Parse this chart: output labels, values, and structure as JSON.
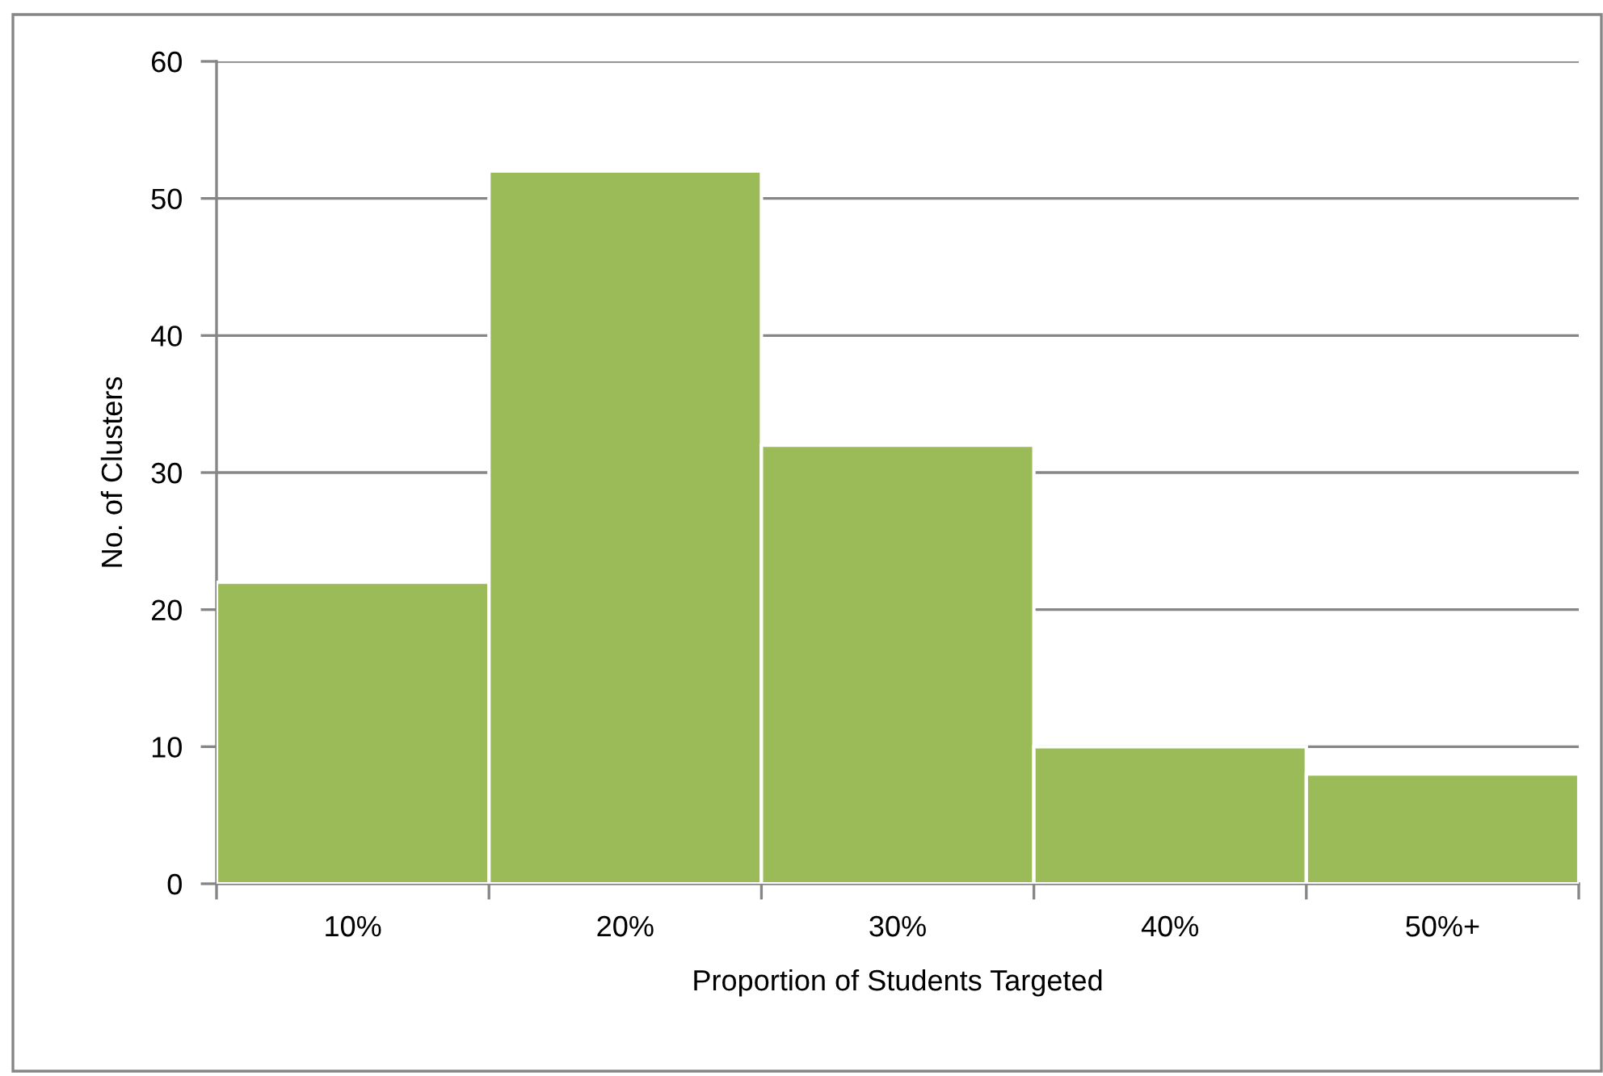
{
  "chart_data": {
    "type": "bar",
    "xlabel": "Proportion of Students Targeted",
    "ylabel": "No. of Clusters",
    "categories": [
      "10%",
      "20%",
      "30%",
      "40%",
      "50%+"
    ],
    "values": [
      22,
      52,
      32,
      10,
      8
    ],
    "color": "#9bbb59",
    "ylim": [
      0,
      60
    ],
    "yticks": [
      0,
      10,
      20,
      30,
      40,
      50,
      60
    ],
    "grid": "y"
  }
}
